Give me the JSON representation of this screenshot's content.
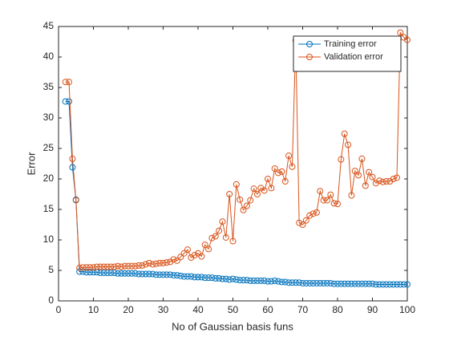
{
  "chart_data": {
    "type": "line",
    "xlabel": "No of Gaussian basis funs",
    "ylabel": "Error",
    "x": [
      2,
      3,
      4,
      5,
      6,
      7,
      8,
      9,
      10,
      11,
      12,
      13,
      14,
      15,
      16,
      17,
      18,
      19,
      20,
      21,
      22,
      23,
      24,
      25,
      26,
      27,
      28,
      29,
      30,
      31,
      32,
      33,
      34,
      35,
      36,
      37,
      38,
      39,
      40,
      41,
      42,
      43,
      44,
      45,
      46,
      47,
      48,
      49,
      50,
      51,
      52,
      53,
      54,
      55,
      56,
      57,
      58,
      59,
      60,
      61,
      62,
      63,
      64,
      65,
      66,
      67,
      68,
      69,
      70,
      71,
      72,
      73,
      74,
      75,
      76,
      77,
      78,
      79,
      80,
      81,
      82,
      83,
      84,
      85,
      86,
      87,
      88,
      89,
      90,
      91,
      92,
      93,
      94,
      95,
      96,
      97,
      98,
      99,
      100
    ],
    "series": [
      {
        "name": "Training error",
        "color": "#0072bd",
        "values": [
          32.7,
          32.7,
          21.9,
          16.6,
          4.8,
          4.8,
          4.7,
          4.7,
          4.7,
          4.7,
          4.6,
          4.6,
          4.6,
          4.6,
          4.6,
          4.5,
          4.5,
          4.5,
          4.5,
          4.5,
          4.5,
          4.4,
          4.4,
          4.4,
          4.4,
          4.4,
          4.3,
          4.3,
          4.3,
          4.3,
          4.3,
          4.2,
          4.2,
          4.1,
          4.0,
          4.0,
          4.0,
          3.9,
          3.9,
          3.9,
          3.8,
          3.8,
          3.8,
          3.7,
          3.7,
          3.6,
          3.6,
          3.5,
          3.6,
          3.5,
          3.4,
          3.4,
          3.4,
          3.3,
          3.3,
          3.3,
          3.3,
          3.3,
          3.2,
          3.2,
          3.3,
          3.2,
          3.1,
          3.1,
          3.0,
          3.0,
          3.0,
          3.0,
          2.9,
          2.9,
          2.9,
          2.9,
          2.9,
          2.9,
          2.9,
          2.9,
          2.9,
          2.8,
          2.8,
          2.8,
          2.8,
          2.8,
          2.8,
          2.8,
          2.8,
          2.8,
          2.8,
          2.8,
          2.8,
          2.7,
          2.7,
          2.7,
          2.7,
          2.7,
          2.7,
          2.7,
          2.7,
          2.7,
          2.7
        ]
      },
      {
        "name": "Validation error",
        "color": "#d95319",
        "values": [
          35.9,
          35.9,
          23.3,
          16.5,
          5.4,
          5.5,
          5.5,
          5.5,
          5.5,
          5.6,
          5.6,
          5.6,
          5.6,
          5.6,
          5.6,
          5.7,
          5.6,
          5.7,
          5.7,
          5.7,
          5.7,
          5.8,
          5.8,
          6.0,
          6.2,
          6.0,
          6.1,
          6.2,
          6.2,
          6.3,
          6.4,
          6.8,
          6.6,
          7.2,
          7.8,
          8.4,
          7.1,
          7.5,
          7.8,
          7.3,
          9.2,
          8.5,
          10.3,
          10.6,
          11.5,
          13.0,
          10.4,
          17.5,
          9.8,
          19.1,
          16.6,
          14.9,
          15.6,
          16.5,
          18.4,
          17.5,
          18.5,
          18.1,
          20.0,
          18.5,
          21.7,
          21.0,
          21.2,
          19.6,
          23.8,
          22.0,
          42.7,
          12.8,
          12.5,
          13.2,
          14.0,
          14.3,
          14.5,
          18.0,
          16.5,
          16.5,
          17.4,
          16.0,
          15.9,
          23.2,
          27.4,
          25.6,
          17.3,
          21.3,
          20.6,
          23.3,
          18.9,
          21.1,
          20.3,
          19.3,
          19.7,
          19.5,
          19.6,
          19.6,
          20.0,
          20.2,
          44.0,
          43.2,
          42.8
        ]
      }
    ],
    "xlim": [
      0,
      100
    ],
    "xticks": [
      0,
      10,
      20,
      30,
      40,
      50,
      60,
      70,
      80,
      90,
      100
    ],
    "ylim": [
      0,
      45
    ],
    "yticks": [
      0,
      5,
      10,
      15,
      20,
      25,
      30,
      35,
      40,
      45
    ],
    "legend": "northeast",
    "grid": false
  }
}
